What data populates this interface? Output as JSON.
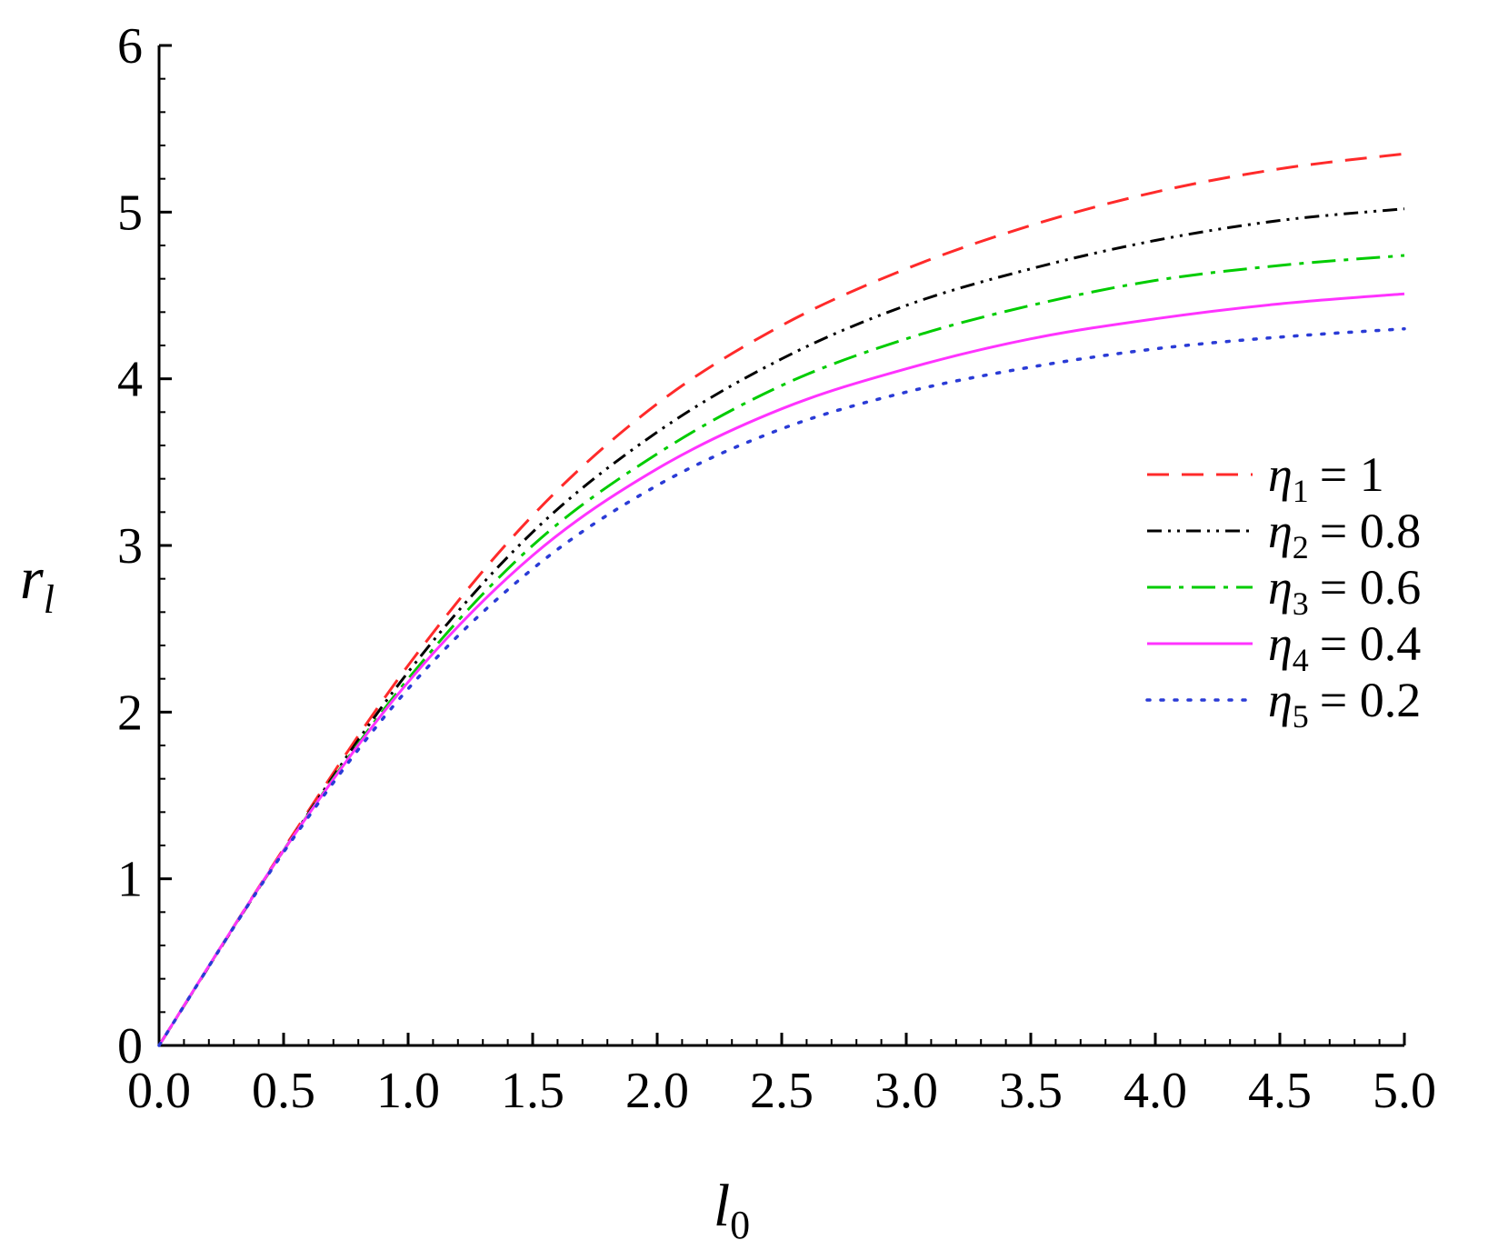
{
  "chart_data": {
    "type": "line",
    "title": "",
    "xlabel": {
      "main": "l",
      "sub": "0"
    },
    "ylabel": {
      "main": "r",
      "sub": "l"
    },
    "xlim": [
      0,
      5
    ],
    "ylim": [
      0,
      6
    ],
    "xticks": [
      "0.0",
      "0.5",
      "1.0",
      "1.5",
      "2.0",
      "2.5",
      "3.0",
      "3.5",
      "4.0",
      "4.5",
      "5.0"
    ],
    "yticks": [
      "0",
      "1",
      "2",
      "3",
      "4",
      "5",
      "6"
    ],
    "grid": false,
    "legend_position": "right",
    "x": [
      0.0,
      0.5,
      1.0,
      1.5,
      2.0,
      2.5,
      3.0,
      3.5,
      4.0,
      4.5,
      5.0
    ],
    "series": [
      {
        "symbol": "η",
        "sub": "1",
        "value": "= 1",
        "color": "#ff2a2a",
        "style": "dash",
        "values": [
          0.0,
          1.18,
          2.28,
          3.18,
          3.85,
          4.32,
          4.66,
          4.92,
          5.12,
          5.26,
          5.35
        ]
      },
      {
        "symbol": "η",
        "sub": "2",
        "value": "= 0.8",
        "color": "#000000",
        "style": "dashdotdot",
        "values": [
          0.0,
          1.17,
          2.24,
          3.08,
          3.68,
          4.12,
          4.44,
          4.66,
          4.83,
          4.95,
          5.02
        ]
      },
      {
        "symbol": "η",
        "sub": "3",
        "value": "= 0.6",
        "color": "#00cc00",
        "style": "dashdot",
        "values": [
          0.0,
          1.17,
          2.2,
          3.0,
          3.55,
          3.96,
          4.24,
          4.44,
          4.59,
          4.68,
          4.74
        ]
      },
      {
        "symbol": "η",
        "sub": "4",
        "value": "= 0.4",
        "color": "#ff33ff",
        "style": "solid",
        "values": [
          0.0,
          1.17,
          2.18,
          2.94,
          3.46,
          3.82,
          4.06,
          4.24,
          4.36,
          4.45,
          4.51
        ]
      },
      {
        "symbol": "η",
        "sub": "5",
        "value": "= 0.2",
        "color": "#2a3bd6",
        "style": "dot",
        "values": [
          0.0,
          1.16,
          2.14,
          2.86,
          3.36,
          3.7,
          3.92,
          4.07,
          4.18,
          4.25,
          4.3
        ]
      }
    ]
  }
}
